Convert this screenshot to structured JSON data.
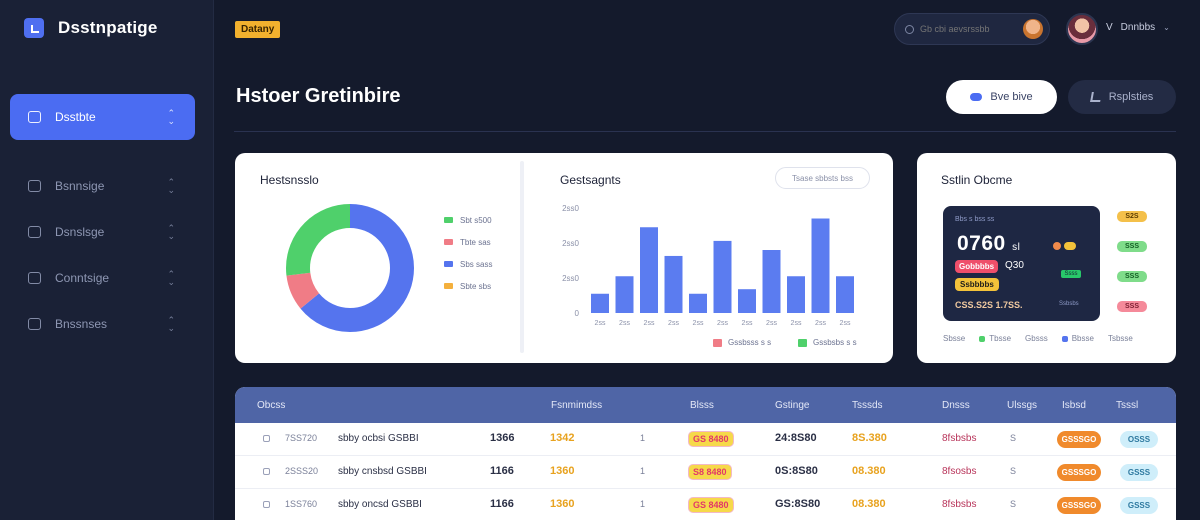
{
  "app": {
    "brand_name": "Dsstnpatige"
  },
  "sidebar": {
    "items": [
      {
        "label": "Dsstbte",
        "active": true,
        "icon": "dashboard-icon"
      },
      {
        "label": "Bsnnsige",
        "active": false,
        "icon": "chart-icon"
      },
      {
        "label": "Dsnslsge",
        "active": false,
        "icon": "document-icon"
      },
      {
        "label": "Conntsige",
        "active": false,
        "icon": "analytics-icon"
      },
      {
        "label": "Bnssnses",
        "active": false,
        "icon": "settings-icon"
      }
    ]
  },
  "topbar": {
    "tag": "Datany",
    "search_placeholder": "Gb cbi aevsrssbb",
    "user_initial": "V",
    "user_name": "Dnnbbs"
  },
  "header": {
    "title": "Hstoer Gretinbire",
    "primary_button": "Bve bive",
    "secondary_button": "Rsplsties"
  },
  "donut_card": {
    "title": "Hestsnsslo",
    "legend": [
      {
        "label": "Sbt s500",
        "color": "#4fd06b"
      },
      {
        "label": "Tbte sas",
        "color": "#f07c86"
      },
      {
        "label": "Sbs sass",
        "color": "#5574ee"
      },
      {
        "label": "Sbte sbs",
        "color": "#f4b03d"
      }
    ],
    "segments": [
      {
        "label": "Sbs sass",
        "fraction": 0.64,
        "color": "#5574ee"
      },
      {
        "label": "Tbte sas",
        "fraction": 0.09,
        "color": "#f07c86"
      },
      {
        "label": "Sbt s500",
        "fraction": 0.27,
        "color": "#4fd06b"
      }
    ]
  },
  "chart_data": {
    "type": "bar",
    "title": "Gestsagnts",
    "categories": [
      "2ss",
      "2ss",
      "2ss",
      "2ss",
      "2ss",
      "2ss",
      "2ss",
      "2ss",
      "2ss",
      "2ss",
      "2ss"
    ],
    "values": [
      55,
      105,
      245,
      163,
      55,
      206,
      68,
      180,
      105,
      270,
      105
    ],
    "y_ticks": [
      "2ss0",
      "2ss0",
      "2ss0",
      "0"
    ],
    "ylim": [
      0,
      300
    ],
    "bar_color": "#5b7cf0",
    "filter_label": "Tsase sbbsts bss",
    "legend": [
      {
        "label": "Gssbsss s s",
        "color": "#f07c86"
      },
      {
        "label": "Gssbsbs s s",
        "color": "#4fd06b"
      }
    ]
  },
  "side_card": {
    "title": "Sstlin Obcme",
    "panel_label": "Bbs s bss ss",
    "value": "0760",
    "value_suffix": "sl",
    "tag_red": "Gobbbbs",
    "text_after_red": "Q30",
    "tag_yellow": "Ssbbbbs",
    "bottom_text": "CSS.S2S  1.7SS.",
    "mini_label": "Ssss",
    "mini_caption": "Ssbsbs",
    "badges": [
      {
        "label": "S2S",
        "bg": "#f4c04a",
        "fg": "#5a3b00"
      },
      {
        "label": "SSS",
        "bg": "#7fdc8a",
        "fg": "#125d22"
      },
      {
        "label": "SSS",
        "bg": "#7fdc8a",
        "fg": "#125d22"
      },
      {
        "label": "SSS",
        "bg": "#f58a9a",
        "fg": "#7a1d30"
      }
    ],
    "footer": [
      {
        "label": "Sbsse",
        "color": ""
      },
      {
        "label": "Tbsse",
        "color": "#4fd06b"
      },
      {
        "label": "Gbsss",
        "color": ""
      },
      {
        "label": "Bbsse",
        "color": "#5574ee"
      },
      {
        "label": "Tsbsse",
        "color": ""
      }
    ]
  },
  "table": {
    "headers": [
      "Obcss",
      "Fsnmimdss",
      "Blsss",
      "Gstinge",
      "Tsssds",
      "Dnsss",
      "Ulssgs",
      "Isbsd",
      "Tsssl"
    ],
    "rows": [
      {
        "id": "7SS720",
        "name": "sbby ocbsi  GSBBI",
        "qty": "1366",
        "amount": "1342",
        "n": "1",
        "pill": "GS 8480",
        "price": "24:8S80",
        "rate": "8S.380",
        "red": "8fsbsbs",
        "small": "S",
        "status": "GSSSGO",
        "code": "OSSS"
      },
      {
        "id": "2SSS20",
        "name": "sbby cnsbsd  GSBBI",
        "qty": "1166",
        "amount": "1360",
        "n": "1",
        "pill": "S8 8480",
        "price": "0S:8S80",
        "rate": "08.380",
        "red": "8fsosbs",
        "small": "S",
        "status": "GSSSGO",
        "code": "GSSS"
      },
      {
        "id": "1SS760",
        "name": "sbby oncsd  GSBBI",
        "qty": "1166",
        "amount": "1360",
        "n": "1",
        "pill": "GS 8480",
        "price": "GS:8S80",
        "rate": "08.380",
        "red": "8fsbsbs",
        "small": "S",
        "status": "GSSSGO",
        "code": "GSSS"
      }
    ]
  }
}
